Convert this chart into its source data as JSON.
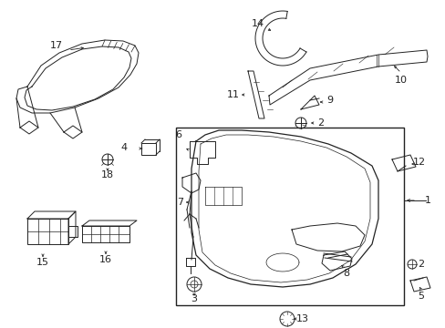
{
  "background_color": "#ffffff",
  "fig_width": 4.89,
  "fig_height": 3.6,
  "dpi": 100,
  "line_color": "#222222",
  "lw": 0.7
}
